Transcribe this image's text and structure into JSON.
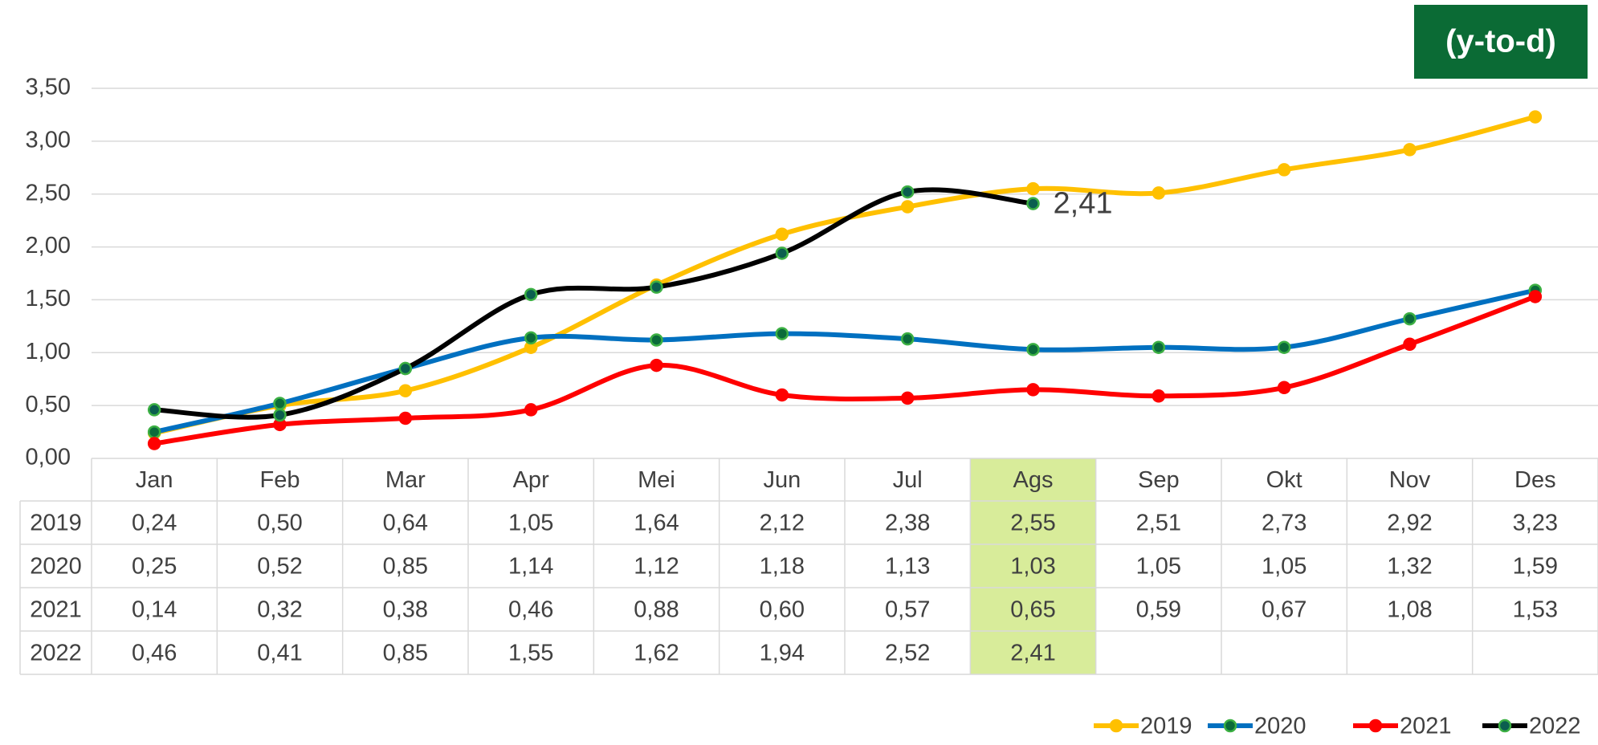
{
  "chart_data": {
    "type": "line",
    "annotation": "(y-to-d)",
    "categories": [
      "Jan",
      "Feb",
      "Mar",
      "Apr",
      "Mei",
      "Jun",
      "Jul",
      "Ags",
      "Sep",
      "Okt",
      "Nov",
      "Des"
    ],
    "series": [
      {
        "name": "2019",
        "color": "#ffc000",
        "marker_color": "#ffc000",
        "values": [
          0.24,
          0.5,
          0.64,
          1.05,
          1.64,
          2.12,
          2.38,
          2.55,
          2.51,
          2.73,
          2.92,
          3.23
        ],
        "value_labels": [
          "0,24",
          "0,50",
          "0,64",
          "1,05",
          "1,64",
          "2,12",
          "2,38",
          "2,55",
          "2,51",
          "2,73",
          "2,92",
          "3,23"
        ]
      },
      {
        "name": "2020",
        "color": "#0070c0",
        "marker_color": "#0b6b3a",
        "values": [
          0.25,
          0.52,
          0.85,
          1.14,
          1.12,
          1.18,
          1.13,
          1.03,
          1.05,
          1.05,
          1.32,
          1.59
        ],
        "value_labels": [
          "0,25",
          "0,52",
          "0,85",
          "1,14",
          "1,12",
          "1,18",
          "1,13",
          "1,03",
          "1,05",
          "1,05",
          "1,32",
          "1,59"
        ]
      },
      {
        "name": "2021",
        "color": "#ff0000",
        "marker_color": "#ff0000",
        "values": [
          0.14,
          0.32,
          0.38,
          0.46,
          0.88,
          0.6,
          0.57,
          0.65,
          0.59,
          0.67,
          1.08,
          1.53
        ],
        "value_labels": [
          "0,14",
          "0,32",
          "0,38",
          "0,46",
          "0,88",
          "0,60",
          "0,57",
          "0,65",
          "0,59",
          "0,67",
          "1,08",
          "1,53"
        ]
      },
      {
        "name": "2022",
        "color": "#000000",
        "marker_color": "#0b5e4f",
        "values": [
          0.46,
          0.41,
          0.85,
          1.55,
          1.62,
          1.94,
          2.52,
          2.41,
          null,
          null,
          null,
          null
        ],
        "value_labels": [
          "0,46",
          "0,41",
          "0,85",
          "1,55",
          "1,62",
          "1,94",
          "2,52",
          "2,41",
          null,
          null,
          null,
          null
        ]
      }
    ],
    "ylim": [
      0,
      3.5
    ],
    "yticks": [
      {
        "value": 0,
        "label": "0,00"
      },
      {
        "value": 0.5,
        "label": "0,50"
      },
      {
        "value": 1,
        "label": "1,00"
      },
      {
        "value": 1.5,
        "label": "1,50"
      },
      {
        "value": 2,
        "label": "2,00"
      },
      {
        "value": 2.5,
        "label": "2,50"
      },
      {
        "value": 3,
        "label": "3,00"
      },
      {
        "value": 3.5,
        "label": "3,50"
      }
    ],
    "grid": true,
    "smooth": true,
    "legend": "bottom-right",
    "highlight_index": 7,
    "highlight_color": "#d8ec9a"
  }
}
